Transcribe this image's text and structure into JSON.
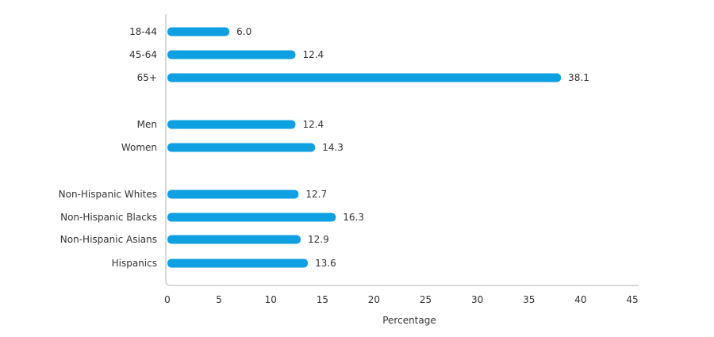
{
  "chart_data": {
    "type": "bar",
    "orientation": "horizontal",
    "categories": [
      "18-44",
      "45-64",
      "65+",
      "Men",
      "Women",
      "Non-Hispanic Whites",
      "Non-Hispanic Blacks",
      "Non-Hispanic Asians",
      "Hispanics"
    ],
    "groups": [
      [
        "18-44",
        "45-64",
        "65+"
      ],
      [
        "Men",
        "Women"
      ],
      [
        "Non-Hispanic Whites",
        "Non-Hispanic Blacks",
        "Non-Hispanic Asians",
        "Hispanics"
      ]
    ],
    "values": [
      6.0,
      12.4,
      38.1,
      12.4,
      14.3,
      12.7,
      16.3,
      12.9,
      13.6
    ],
    "value_labels": [
      "6.0",
      "12.4",
      "38.1",
      "12.4",
      "14.3",
      "12.7",
      "16.3",
      "12.9",
      "13.6"
    ],
    "xlabel": "Percentage",
    "ylabel": "",
    "title": "",
    "xlim": [
      0,
      45
    ],
    "xticks": [
      "0",
      "5",
      "10",
      "15",
      "20",
      "25",
      "30",
      "35",
      "40",
      "45"
    ],
    "grid": false,
    "bar_color": "#0ea0e0",
    "axis_color": "#cccccc",
    "text_color": "#333333"
  }
}
